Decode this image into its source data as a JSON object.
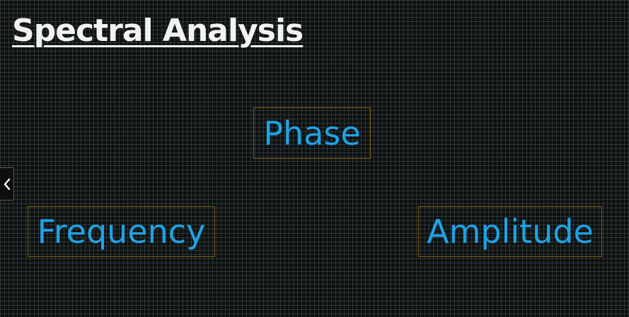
{
  "slide": {
    "title": "Spectral Analysis"
  },
  "terms": {
    "phase": "Phase",
    "frequency": "Frequency",
    "amplitude": "Amplitude"
  },
  "navigation": {
    "back_icon": "chevron-left-icon"
  },
  "colors": {
    "background": "#0d1111",
    "title": "#f2f2f2",
    "term_text": "#1fa2e6",
    "term_border": "#7a5d12"
  }
}
